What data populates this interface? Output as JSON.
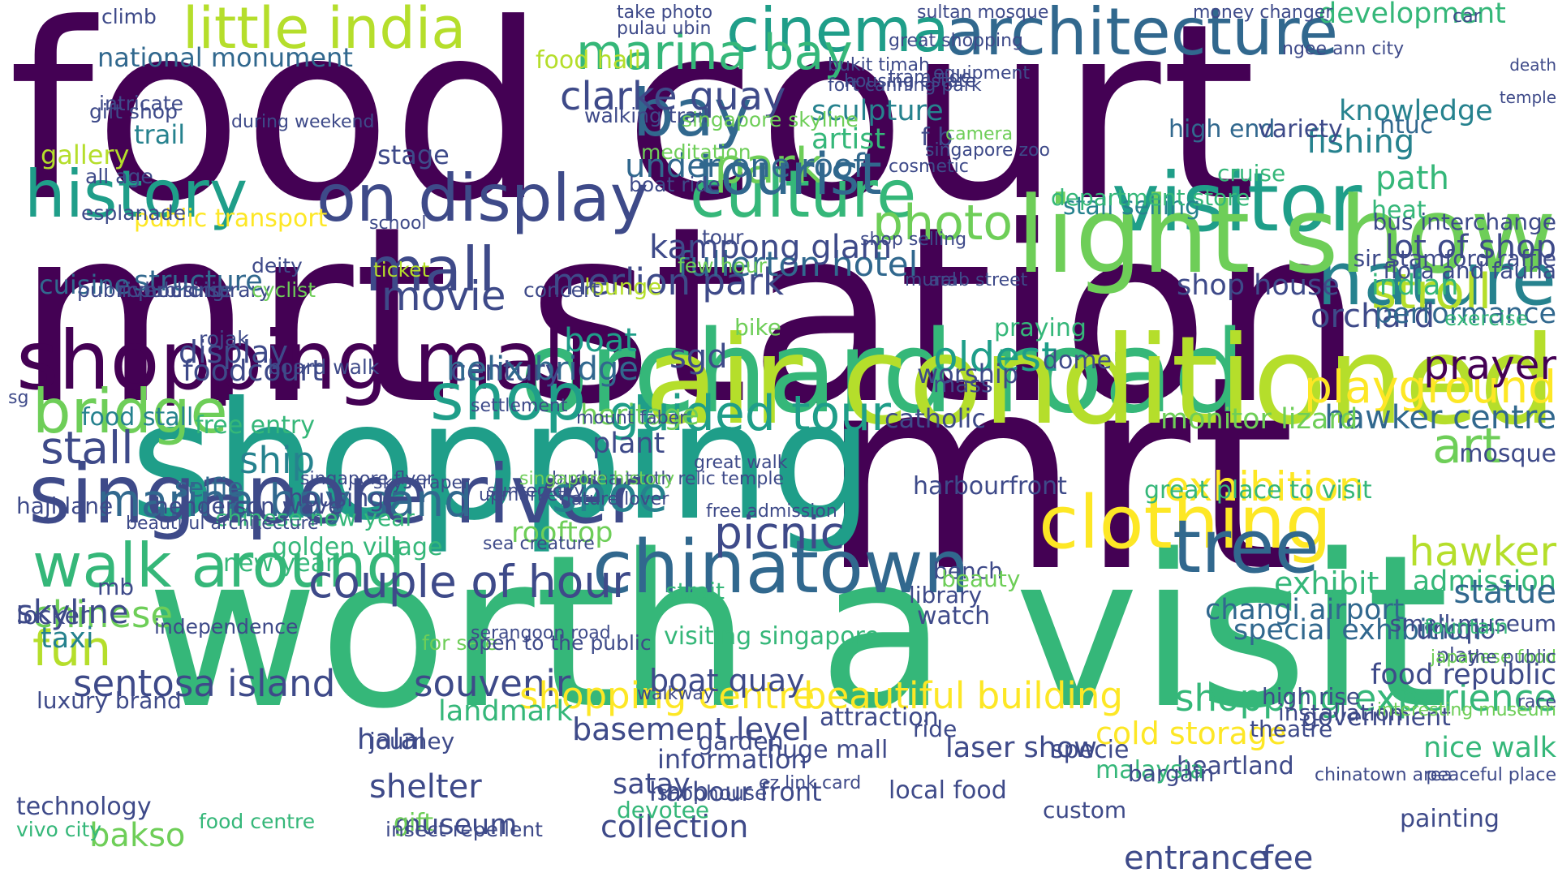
{
  "palette": {
    "viridis_0": "#440154",
    "viridis_1": "#482878",
    "viridis_2": "#3e4a89",
    "viridis_3": "#31688e",
    "viridis_4": "#26828e",
    "viridis_5": "#1f9e89",
    "viridis_6": "#35b779",
    "viridis_7": "#6ece58",
    "viridis_8": "#b5de2b",
    "viridis_9": "#fde725"
  },
  "words": [
    {
      "text": "food court",
      "color": "#440154"
    },
    {
      "text": "mrt station",
      "color": "#440154"
    },
    {
      "text": "mrt",
      "color": "#440154"
    },
    {
      "text": "worth a visit",
      "color": "#35b779"
    },
    {
      "text": "shopping",
      "color": "#1f9e89"
    },
    {
      "text": "orchard road",
      "color": "#35b779"
    },
    {
      "text": "shopping mall",
      "color": "#440154"
    },
    {
      "text": "singapore river",
      "color": "#3e4a89"
    },
    {
      "text": "history",
      "color": "#1f9e89"
    },
    {
      "text": "on display",
      "color": "#3e4a89"
    },
    {
      "text": "visitor",
      "color": "#1f9e89"
    },
    {
      "text": "nature",
      "color": "#26828e"
    },
    {
      "text": "culture",
      "color": "#35b779"
    },
    {
      "text": "architecture",
      "color": "#31688e"
    },
    {
      "text": "cinema",
      "color": "#1f9e89"
    },
    {
      "text": "little india",
      "color": "#b5de2b"
    },
    {
      "text": "chinatown",
      "color": "#31688e"
    },
    {
      "text": "clothing",
      "color": "#fde725"
    },
    {
      "text": "walk around",
      "color": "#35b779"
    },
    {
      "text": "marina bay sand",
      "color": "#31688e"
    },
    {
      "text": "marina bay",
      "color": "#35b779"
    },
    {
      "text": "bay",
      "color": "#31688e"
    },
    {
      "text": "park",
      "color": "#6ece58"
    },
    {
      "text": "mall",
      "color": "#3e4a89"
    },
    {
      "text": "shop",
      "color": "#1f9e89"
    },
    {
      "text": "bridge",
      "color": "#6ece58"
    },
    {
      "text": "stall",
      "color": "#3e4a89"
    },
    {
      "text": "tree",
      "color": "#31688e"
    },
    {
      "text": "tourist",
      "color": "#31688e"
    },
    {
      "text": "photo",
      "color": "#6ece58"
    },
    {
      "text": "light show",
      "color": "#6ece58"
    },
    {
      "text": "air conditioned",
      "color": "#b5de2b"
    },
    {
      "text": "guided tour",
      "color": "#1f9e89"
    },
    {
      "text": "playground",
      "color": "#fde725"
    },
    {
      "text": "stroll",
      "color": "#b5de2b"
    },
    {
      "text": "art",
      "color": "#6ece58"
    },
    {
      "text": "exhibition",
      "color": "#fde725"
    },
    {
      "text": "picnic",
      "color": "#3e4a89"
    },
    {
      "text": "shoe",
      "color": "#26828e"
    },
    {
      "text": "fun",
      "color": "#b5de2b"
    },
    {
      "text": "chinese",
      "color": "#6ece58"
    },
    {
      "text": "couple of hour",
      "color": "#3e4a89"
    },
    {
      "text": "sentosa island",
      "color": "#3e4a89"
    },
    {
      "text": "souvenir",
      "color": "#3e4a89"
    },
    {
      "text": "shopping centre",
      "color": "#fde725"
    },
    {
      "text": "beautiful building",
      "color": "#fde725"
    },
    {
      "text": "shopping experience",
      "color": "#35b779"
    },
    {
      "text": "hawker",
      "color": "#b5de2b"
    },
    {
      "text": "hawker centre",
      "color": "#31688e"
    },
    {
      "text": "prayer",
      "color": "#440154"
    },
    {
      "text": "orchard",
      "color": "#3e4a89"
    },
    {
      "text": "performance",
      "color": "#31688e"
    },
    {
      "text": "lot of shop",
      "color": "#3e4a89"
    },
    {
      "text": "oldest",
      "color": "#1f9e89"
    },
    {
      "text": "movie",
      "color": "#3e4a89"
    },
    {
      "text": "merlion park",
      "color": "#3e4a89"
    },
    {
      "text": "fullerton hotel",
      "color": "#31688e"
    },
    {
      "text": "kampong glam",
      "color": "#3e4a89"
    },
    {
      "text": "clarke quay",
      "color": "#3e4a89"
    },
    {
      "text": "under one roof",
      "color": "#31688e"
    },
    {
      "text": "structure",
      "color": "#31688e"
    },
    {
      "text": "cuisine",
      "color": "#31688e"
    },
    {
      "text": "national monument",
      "color": "#31688e"
    },
    {
      "text": "gallery",
      "color": "#b5de2b"
    },
    {
      "text": "trail",
      "color": "#26828e"
    },
    {
      "text": "public transport",
      "color": "#fde725"
    },
    {
      "text": "display",
      "color": "#3e4a89"
    },
    {
      "text": "foodcourt",
      "color": "#3e4a89"
    },
    {
      "text": "boat",
      "color": "#1f9e89"
    },
    {
      "text": "sgd",
      "color": "#3e4a89"
    },
    {
      "text": "plant",
      "color": "#3e4a89"
    },
    {
      "text": "heritage",
      "color": "#6ece58"
    },
    {
      "text": "century",
      "color": "#3e4a89"
    },
    {
      "text": "helix bridge",
      "color": "#31688e"
    },
    {
      "text": "skyline",
      "color": "#3e4a89"
    },
    {
      "text": "taxi",
      "color": "#26828e"
    },
    {
      "text": "ship",
      "color": "#26828e"
    },
    {
      "text": "halal",
      "color": "#3e4a89"
    },
    {
      "text": "landmark",
      "color": "#35b779"
    },
    {
      "text": "bakso",
      "color": "#6ece58"
    },
    {
      "text": "shelter",
      "color": "#3e4a89"
    },
    {
      "text": "satay",
      "color": "#3e4a89"
    },
    {
      "text": "collection",
      "color": "#3e4a89"
    },
    {
      "text": "basement level",
      "color": "#3e4a89"
    },
    {
      "text": "boat quay",
      "color": "#3e4a89"
    },
    {
      "text": "information",
      "color": "#3e4a89"
    },
    {
      "text": "laser show",
      "color": "#3e4a89"
    },
    {
      "text": "cold storage",
      "color": "#fde725"
    },
    {
      "text": "exhibit",
      "color": "#35b779"
    },
    {
      "text": "changi airport",
      "color": "#31688e"
    },
    {
      "text": "special exhibition",
      "color": "#31688e"
    },
    {
      "text": "uniqlo",
      "color": "#3e4a89"
    },
    {
      "text": "admission",
      "color": "#35b779"
    },
    {
      "text": "food republic",
      "color": "#3e4a89"
    },
    {
      "text": "nice walk",
      "color": "#35b779"
    },
    {
      "text": "entrance",
      "color": "#3e4a89"
    },
    {
      "text": "fee",
      "color": "#3e4a89"
    },
    {
      "text": "fishing",
      "color": "#26828e"
    },
    {
      "text": "knowledge",
      "color": "#26828e"
    },
    {
      "text": "path",
      "color": "#35b779"
    },
    {
      "text": "heat",
      "color": "#35b779"
    },
    {
      "text": "indian",
      "color": "#35b779"
    },
    {
      "text": "shop house",
      "color": "#3e4a89"
    },
    {
      "text": "monitor lizard",
      "color": "#6ece58"
    },
    {
      "text": "great place to visit",
      "color": "#35b779"
    },
    {
      "text": "harbourfront",
      "color": "#3e4a89"
    },
    {
      "text": "catholic",
      "color": "#3e4a89"
    },
    {
      "text": "mosque",
      "color": "#3e4a89"
    },
    {
      "text": "statue",
      "color": "#31688e"
    },
    {
      "text": "sculpture",
      "color": "#26828e"
    },
    {
      "text": "artist",
      "color": "#35b779"
    },
    {
      "text": "f b",
      "color": "#3e4a89"
    },
    {
      "text": "stage",
      "color": "#3e4a89"
    },
    {
      "text": "food hall",
      "color": "#b5de2b"
    },
    {
      "text": "food stall",
      "color": "#26828e"
    },
    {
      "text": "free entry",
      "color": "#35b779"
    },
    {
      "text": "selfie",
      "color": "#31688e"
    },
    {
      "text": "housing",
      "color": "#3e4a89"
    },
    {
      "text": "golden village",
      "color": "#35b779"
    },
    {
      "text": "haji lane",
      "color": "#3e4a89"
    },
    {
      "text": "henderson wave",
      "color": "#3e4a89"
    },
    {
      "text": "dome",
      "color": "#3e4a89"
    },
    {
      "text": "worship",
      "color": "#3e4a89"
    },
    {
      "text": "mass",
      "color": "#3e4a89"
    },
    {
      "text": "praying",
      "color": "#35b779"
    },
    {
      "text": "stall selling",
      "color": "#26828e"
    },
    {
      "text": "department store",
      "color": "#35b779"
    },
    {
      "text": "cruise",
      "color": "#35b779"
    },
    {
      "text": "high end",
      "color": "#31688e"
    },
    {
      "text": "variety",
      "color": "#3e4a89"
    },
    {
      "text": "development",
      "color": "#35b779"
    },
    {
      "text": "ntuc",
      "color": "#31688e"
    },
    {
      "text": "bus interchange",
      "color": "#3e4a89"
    },
    {
      "text": "exercise",
      "color": "#35b779"
    },
    {
      "text": "flora and fauna",
      "color": "#3e4a89"
    },
    {
      "text": "sir stamford raffle",
      "color": "#3e4a89"
    },
    {
      "text": "watch",
      "color": "#3e4a89"
    },
    {
      "text": "library",
      "color": "#3e4a89"
    },
    {
      "text": "bench",
      "color": "#3e4a89"
    },
    {
      "text": "beauty",
      "color": "#6ece58"
    },
    {
      "text": "ride",
      "color": "#3e4a89"
    },
    {
      "text": "specie",
      "color": "#3e4a89"
    },
    {
      "text": "painting",
      "color": "#3e4a89"
    },
    {
      "text": "attraction",
      "color": "#3e4a89"
    },
    {
      "text": "huge mall",
      "color": "#3e4a89"
    },
    {
      "text": "new year",
      "color": "#35b779"
    },
    {
      "text": "chinese new year",
      "color": "#35b779"
    },
    {
      "text": "strait",
      "color": "#35b779"
    },
    {
      "text": "visiting singapore",
      "color": "#35b779"
    },
    {
      "text": "rooftop",
      "color": "#6ece58"
    },
    {
      "text": "museum",
      "color": "#3e4a89"
    },
    {
      "text": "gift",
      "color": "#6ece58"
    },
    {
      "text": "vivo city",
      "color": "#35b779"
    },
    {
      "text": "technology",
      "color": "#3e4a89"
    },
    {
      "text": "food centre",
      "color": "#35b779"
    },
    {
      "text": "insect repellent",
      "color": "#3e4a89"
    },
    {
      "text": "garden",
      "color": "#3e4a89"
    },
    {
      "text": "harbour front",
      "color": "#3e4a89"
    },
    {
      "text": "devotee",
      "color": "#35b779"
    },
    {
      "text": "shophouse",
      "color": "#3e4a89"
    },
    {
      "text": "small museum",
      "color": "#3e4a89"
    },
    {
      "text": "play",
      "color": "#3e4a89"
    },
    {
      "text": "fountain",
      "color": "#35b779"
    },
    {
      "text": "high rise",
      "color": "#3e4a89"
    },
    {
      "text": "installation",
      "color": "#3e4a89"
    },
    {
      "text": "theatre",
      "color": "#3e4a89"
    },
    {
      "text": "government",
      "color": "#3e4a89"
    },
    {
      "text": "heartland",
      "color": "#3e4a89"
    },
    {
      "text": "malaysia",
      "color": "#35b779"
    },
    {
      "text": "bargain",
      "color": "#3e4a89"
    },
    {
      "text": "custom",
      "color": "#3e4a89"
    },
    {
      "text": "local food",
      "color": "#3e4a89"
    },
    {
      "text": "locker",
      "color": "#3e4a89"
    },
    {
      "text": "mb",
      "color": "#3e4a89"
    },
    {
      "text": "independence",
      "color": "#3e4a89"
    },
    {
      "text": "luxury brand",
      "color": "#3e4a89"
    },
    {
      "text": "journey",
      "color": "#3e4a89"
    },
    {
      "text": "for sale",
      "color": "#6ece58"
    },
    {
      "text": "open to the public",
      "color": "#3e4a89"
    },
    {
      "text": "rojak",
      "color": "#3e4a89"
    },
    {
      "text": "board walk",
      "color": "#3e4a89"
    },
    {
      "text": "public library",
      "color": "#3e4a89"
    },
    {
      "text": "river cruise",
      "color": "#3e4a89"
    },
    {
      "text": "public housing",
      "color": "#3e4a89"
    },
    {
      "text": "deity",
      "color": "#3e4a89"
    },
    {
      "text": "cyclist",
      "color": "#6ece58"
    },
    {
      "text": "lounge",
      "color": "#b5de2b"
    },
    {
      "text": "concert",
      "color": "#3e4a89"
    },
    {
      "text": "bike",
      "color": "#6ece58"
    },
    {
      "text": "few hour",
      "color": "#6ece58"
    },
    {
      "text": "tour",
      "color": "#3e4a89"
    },
    {
      "text": "boat ride",
      "color": "#3e4a89"
    },
    {
      "text": "meditation",
      "color": "#6ece58"
    },
    {
      "text": "walking trail",
      "color": "#3e4a89"
    },
    {
      "text": "singapore skyline",
      "color": "#6ece58"
    },
    {
      "text": "climb",
      "color": "#3e4a89"
    },
    {
      "text": "gift shop",
      "color": "#3e4a89"
    },
    {
      "text": "intricate",
      "color": "#3e4a89"
    },
    {
      "text": "esplanade",
      "color": "#3e4a89"
    },
    {
      "text": "all age",
      "color": "#3e4a89"
    },
    {
      "text": "during weekend",
      "color": "#3e4a89"
    },
    {
      "text": "school",
      "color": "#3e4a89"
    },
    {
      "text": "ticket",
      "color": "#b5de2b"
    },
    {
      "text": "take photo",
      "color": "#3e4a89"
    },
    {
      "text": "pulau ubin",
      "color": "#3e4a89"
    },
    {
      "text": "bukit timah",
      "color": "#3e4a89"
    },
    {
      "text": "housing estate",
      "color": "#3e4a89"
    },
    {
      "text": "fort canning park",
      "color": "#3e4a89"
    },
    {
      "text": "sultan mosque",
      "color": "#3e4a89"
    },
    {
      "text": "great shopping",
      "color": "#3e4a89"
    },
    {
      "text": "money changer",
      "color": "#3e4a89"
    },
    {
      "text": "ngee ann city",
      "color": "#3e4a89"
    },
    {
      "text": "car",
      "color": "#3e4a89"
    },
    {
      "text": "death",
      "color": "#3e4a89"
    },
    {
      "text": "temple",
      "color": "#3e4a89"
    },
    {
      "text": "equipment",
      "color": "#3e4a89"
    },
    {
      "text": "camera",
      "color": "#6ece58"
    },
    {
      "text": "cosmetic",
      "color": "#3e4a89"
    },
    {
      "text": "singapore zoo",
      "color": "#3e4a89"
    },
    {
      "text": "tram ride",
      "color": "#3e4a89"
    },
    {
      "text": "shop selling",
      "color": "#3e4a89"
    },
    {
      "text": "arab street",
      "color": "#3e4a89"
    },
    {
      "text": "mural",
      "color": "#3e4a89"
    },
    {
      "text": "settlement",
      "color": "#3e4a89"
    },
    {
      "text": "great walk",
      "color": "#3e4a89"
    },
    {
      "text": "skyscraper",
      "color": "#3e4a89"
    },
    {
      "text": "mount faber",
      "color": "#3e4a89"
    },
    {
      "text": "nature lover",
      "color": "#3e4a89"
    },
    {
      "text": "beautiful architecture",
      "color": "#3e4a89"
    },
    {
      "text": "buddha tooth relic temple",
      "color": "#3e4a89"
    },
    {
      "text": "singapore flyer",
      "color": "#3e4a89"
    },
    {
      "text": "sea creature",
      "color": "#3e4a89"
    },
    {
      "text": "upmarket",
      "color": "#3e4a89"
    },
    {
      "text": "suntec city",
      "color": "#3e4a89"
    },
    {
      "text": "singapore history",
      "color": "#6ece58"
    },
    {
      "text": "serangoon road",
      "color": "#3e4a89"
    },
    {
      "text": "free admission",
      "color": "#3e4a89"
    },
    {
      "text": "walkway",
      "color": "#3e4a89"
    },
    {
      "text": "ez link card",
      "color": "#3e4a89"
    },
    {
      "text": "sg",
      "color": "#3e4a89"
    },
    {
      "text": "race",
      "color": "#3e4a89"
    },
    {
      "text": "interesting museum",
      "color": "#6ece58"
    },
    {
      "text": "peaceful place",
      "color": "#3e4a89"
    },
    {
      "text": "chinatown area",
      "color": "#3e4a89"
    },
    {
      "text": "japanese food",
      "color": "#6ece58"
    },
    {
      "text": "the public",
      "color": "#3e4a89"
    }
  ]
}
